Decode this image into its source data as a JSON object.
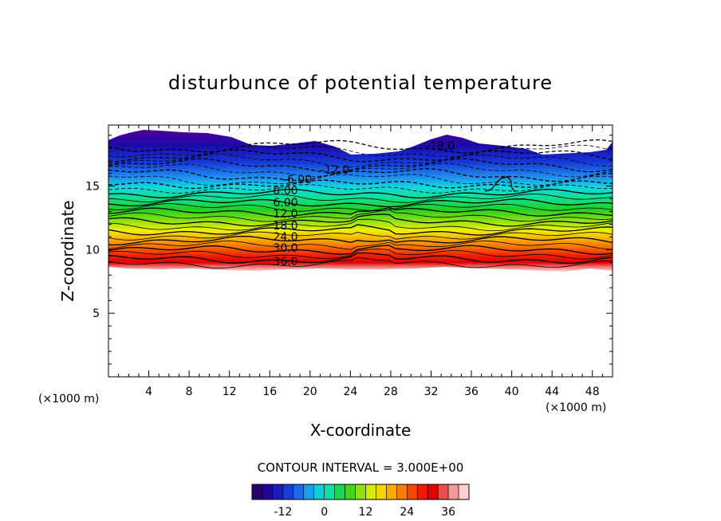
{
  "chart_data": {
    "type": "contour",
    "title": "disturbunce of potential temperature",
    "xlabel": "X-coordinate",
    "ylabel": "Z-coordinate",
    "x_unit": "(×1000 m)",
    "y_unit": "(×1000 m)",
    "xlim": [
      0,
      50
    ],
    "ylim": [
      0,
      19.8
    ],
    "x_ticks": [
      4,
      8,
      12,
      16,
      20,
      24,
      28,
      32,
      36,
      40,
      44,
      48
    ],
    "y_ticks": [
      5,
      10,
      15
    ],
    "colormap": [
      "#2a0070",
      "#1c0aa8",
      "#1638d8",
      "#1f78f0",
      "#10c8e8",
      "#10e0a0",
      "#20d020",
      "#8ee010",
      "#f0f000",
      "#f8b000",
      "#f87000",
      "#f02000",
      "#e00000",
      "#f08080",
      "#fcd0d0"
    ],
    "contour_interval_text": "CONTOUR INTERVAL = 3.000E+00",
    "contour_labels": [
      "-18.0",
      "-12.0",
      "-6.00",
      "0.00",
      "6.00",
      "12.0",
      "18.0",
      "24.0",
      "30.0",
      "36.0"
    ],
    "colorbar": {
      "range": [
        -21,
        42
      ],
      "ticks": [
        "-12",
        "0",
        "12",
        "24",
        "36"
      ]
    }
  }
}
